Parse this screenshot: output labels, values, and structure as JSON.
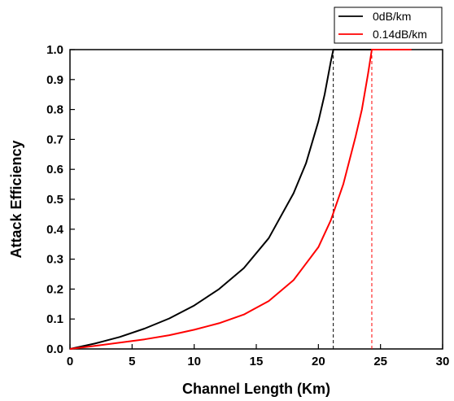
{
  "chart_data": {
    "type": "line",
    "title": "",
    "xlabel": "Channel Length (Km)",
    "ylabel": "Attack Efficiency",
    "xlim": [
      0,
      30
    ],
    "ylim": [
      0,
      1.0
    ],
    "xticks": [
      0,
      5,
      10,
      15,
      20,
      25,
      30
    ],
    "xtick_labels": [
      "0",
      "5",
      "10",
      "15",
      "20",
      "25",
      "30"
    ],
    "yticks": [
      0.0,
      0.1,
      0.2,
      0.3,
      0.4,
      0.5,
      0.6,
      0.7,
      0.8,
      0.9,
      1.0
    ],
    "ytick_labels": [
      "0.0",
      "0.1",
      "0.2",
      "0.3",
      "0.4",
      "0.5",
      "0.6",
      "0.7",
      "0.8",
      "0.9",
      "1.0"
    ],
    "grid": false,
    "legend_position": "top-right, outside above plot",
    "series": [
      {
        "name": "0dB/km",
        "color": "#000000",
        "x": [
          0,
          2,
          4,
          6,
          8,
          10,
          12,
          14,
          16,
          18,
          19,
          20,
          20.5,
          21,
          21.2,
          22,
          24,
          24.5
        ],
        "y": [
          0.0,
          0.018,
          0.04,
          0.068,
          0.102,
          0.145,
          0.2,
          0.27,
          0.37,
          0.52,
          0.62,
          0.76,
          0.85,
          0.96,
          1.0,
          1.0,
          1.0,
          1.0
        ],
        "cutoff_x": 21.2
      },
      {
        "name": "0.14dB/km",
        "color": "#ff0000",
        "x": [
          0,
          2,
          4,
          6,
          8,
          10,
          12,
          14,
          16,
          18,
          20,
          21,
          22,
          23,
          23.5,
          24,
          24.3,
          25,
          26,
          27.5
        ],
        "y": [
          0.0,
          0.01,
          0.021,
          0.032,
          0.046,
          0.064,
          0.086,
          0.115,
          0.16,
          0.23,
          0.34,
          0.43,
          0.55,
          0.71,
          0.8,
          0.92,
          1.0,
          1.0,
          1.0,
          1.0
        ],
        "cutoff_x": 24.3
      }
    ]
  }
}
